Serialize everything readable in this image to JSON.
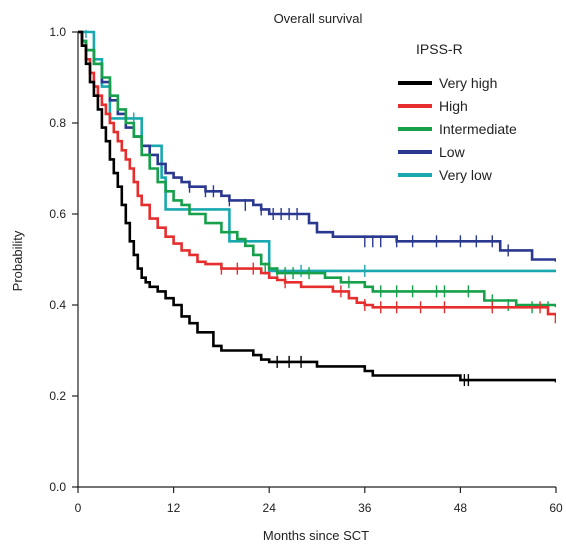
{
  "chart_data": {
    "type": "line",
    "step": true,
    "title": "Overall survival",
    "xlabel": "Months since SCT",
    "ylabel": "Probability",
    "xlim": [
      0,
      60
    ],
    "ylim": [
      0,
      1
    ],
    "xticks": [
      0,
      12,
      24,
      36,
      48,
      60
    ],
    "yticks": [
      0.0,
      0.2,
      0.4,
      0.6,
      0.8,
      1.0
    ],
    "ytick_labels": [
      "0.0",
      "0.2",
      "0.4",
      "0.6",
      "0.8",
      "1.0"
    ],
    "grid": false,
    "legend": {
      "title": "IPSS-R",
      "position": "top-right"
    },
    "series": [
      {
        "name": "Very high",
        "color": "#000000",
        "points": [
          [
            0,
            1.0
          ],
          [
            0.5,
            0.97
          ],
          [
            1,
            0.93
          ],
          [
            1.5,
            0.89
          ],
          [
            2,
            0.86
          ],
          [
            2.5,
            0.83
          ],
          [
            3,
            0.79
          ],
          [
            3.5,
            0.76
          ],
          [
            4,
            0.72
          ],
          [
            4.5,
            0.69
          ],
          [
            5,
            0.66
          ],
          [
            5.5,
            0.62
          ],
          [
            6,
            0.58
          ],
          [
            6.5,
            0.54
          ],
          [
            7,
            0.51
          ],
          [
            7.5,
            0.48
          ],
          [
            8,
            0.46
          ],
          [
            8.5,
            0.45
          ],
          [
            9,
            0.44
          ],
          [
            10,
            0.43
          ],
          [
            11,
            0.415
          ],
          [
            12,
            0.4
          ],
          [
            13,
            0.375
          ],
          [
            14,
            0.36
          ],
          [
            15,
            0.34
          ],
          [
            16,
            0.34
          ],
          [
            17,
            0.31
          ],
          [
            18,
            0.3
          ],
          [
            21,
            0.3
          ],
          [
            22,
            0.29
          ],
          [
            23,
            0.28
          ],
          [
            24,
            0.275
          ],
          [
            29,
            0.275
          ],
          [
            30,
            0.265
          ],
          [
            36,
            0.255
          ],
          [
            37,
            0.245
          ],
          [
            47,
            0.245
          ],
          [
            48,
            0.235
          ],
          [
            60,
            0.23
          ]
        ],
        "censored": [
          [
            25,
            0.275
          ],
          [
            26.5,
            0.275
          ],
          [
            28,
            0.275
          ],
          [
            48.5,
            0.235
          ],
          [
            49,
            0.235
          ]
        ]
      },
      {
        "name": "High",
        "color": "#e62e2e",
        "points": [
          [
            0,
            1.0
          ],
          [
            0.5,
            0.97
          ],
          [
            1,
            0.94
          ],
          [
            1.5,
            0.91
          ],
          [
            2,
            0.88
          ],
          [
            2.5,
            0.86
          ],
          [
            3,
            0.84
          ],
          [
            3.5,
            0.82
          ],
          [
            4,
            0.8
          ],
          [
            4.5,
            0.78
          ],
          [
            5,
            0.76
          ],
          [
            5.5,
            0.74
          ],
          [
            6,
            0.72
          ],
          [
            6.5,
            0.7
          ],
          [
            7,
            0.67
          ],
          [
            7.5,
            0.64
          ],
          [
            8,
            0.62
          ],
          [
            9,
            0.59
          ],
          [
            10,
            0.57
          ],
          [
            11,
            0.55
          ],
          [
            12,
            0.535
          ],
          [
            13,
            0.52
          ],
          [
            14,
            0.51
          ],
          [
            15,
            0.495
          ],
          [
            16,
            0.49
          ],
          [
            18,
            0.48
          ],
          [
            22,
            0.48
          ],
          [
            23,
            0.47
          ],
          [
            24,
            0.46
          ],
          [
            25,
            0.455
          ],
          [
            26,
            0.45
          ],
          [
            28,
            0.44
          ],
          [
            32,
            0.43
          ],
          [
            34,
            0.415
          ],
          [
            35,
            0.405
          ],
          [
            36,
            0.4
          ],
          [
            37,
            0.395
          ],
          [
            58,
            0.395
          ],
          [
            59,
            0.38
          ],
          [
            60,
            0.36
          ]
        ],
        "censored": [
          [
            18,
            0.48
          ],
          [
            20,
            0.48
          ],
          [
            22,
            0.48
          ],
          [
            26,
            0.45
          ],
          [
            33,
            0.43
          ],
          [
            36,
            0.4
          ],
          [
            38,
            0.395
          ],
          [
            40,
            0.395
          ],
          [
            43,
            0.395
          ],
          [
            46,
            0.395
          ],
          [
            52,
            0.395
          ],
          [
            58,
            0.395
          ]
        ]
      },
      {
        "name": "Intermediate",
        "color": "#16a04a",
        "points": [
          [
            0,
            1.0
          ],
          [
            0.5,
            0.98
          ],
          [
            1,
            0.96
          ],
          [
            2,
            0.93
          ],
          [
            3,
            0.9
          ],
          [
            4,
            0.86
          ],
          [
            5,
            0.83
          ],
          [
            6,
            0.8
          ],
          [
            7,
            0.77
          ],
          [
            8,
            0.73
          ],
          [
            9,
            0.7
          ],
          [
            10,
            0.67
          ],
          [
            11,
            0.65
          ],
          [
            12,
            0.63
          ],
          [
            13,
            0.62
          ],
          [
            14,
            0.6
          ],
          [
            16,
            0.58
          ],
          [
            18,
            0.56
          ],
          [
            20,
            0.545
          ],
          [
            21,
            0.53
          ],
          [
            22,
            0.51
          ],
          [
            23,
            0.49
          ],
          [
            24,
            0.48
          ],
          [
            25,
            0.47
          ],
          [
            30,
            0.47
          ],
          [
            31,
            0.46
          ],
          [
            33,
            0.45
          ],
          [
            36,
            0.44
          ],
          [
            37,
            0.43
          ],
          [
            50,
            0.43
          ],
          [
            51,
            0.41
          ],
          [
            55,
            0.4
          ],
          [
            60,
            0.395
          ]
        ],
        "censored": [
          [
            23.5,
            0.48
          ],
          [
            25,
            0.47
          ],
          [
            26,
            0.47
          ],
          [
            27,
            0.47
          ],
          [
            29,
            0.47
          ],
          [
            34,
            0.45
          ],
          [
            38,
            0.43
          ],
          [
            40,
            0.43
          ],
          [
            42,
            0.43
          ],
          [
            45,
            0.43
          ],
          [
            46,
            0.43
          ],
          [
            49,
            0.43
          ],
          [
            52,
            0.41
          ],
          [
            54,
            0.4
          ],
          [
            57,
            0.395
          ],
          [
            59,
            0.395
          ]
        ]
      },
      {
        "name": "Low",
        "color": "#2b3890",
        "points": [
          [
            0,
            1.0
          ],
          [
            0.5,
            0.98
          ],
          [
            1,
            0.96
          ],
          [
            2,
            0.93
          ],
          [
            3,
            0.89
          ],
          [
            4,
            0.85
          ],
          [
            5,
            0.82
          ],
          [
            6,
            0.79
          ],
          [
            7,
            0.77
          ],
          [
            8,
            0.75
          ],
          [
            9,
            0.73
          ],
          [
            10,
            0.71
          ],
          [
            11,
            0.69
          ],
          [
            12,
            0.68
          ],
          [
            13,
            0.67
          ],
          [
            14,
            0.66
          ],
          [
            16,
            0.65
          ],
          [
            18,
            0.64
          ],
          [
            19,
            0.63
          ],
          [
            22,
            0.62
          ],
          [
            23,
            0.61
          ],
          [
            24,
            0.6
          ],
          [
            28,
            0.6
          ],
          [
            29,
            0.58
          ],
          [
            30,
            0.56
          ],
          [
            32,
            0.55
          ],
          [
            38,
            0.55
          ],
          [
            40,
            0.54
          ],
          [
            52,
            0.54
          ],
          [
            53,
            0.52
          ],
          [
            56,
            0.52
          ],
          [
            57,
            0.5
          ],
          [
            60,
            0.495
          ]
        ],
        "censored": [
          [
            14,
            0.66
          ],
          [
            16,
            0.65
          ],
          [
            17,
            0.65
          ],
          [
            19,
            0.63
          ],
          [
            21,
            0.62
          ],
          [
            23,
            0.61
          ],
          [
            24.5,
            0.6
          ],
          [
            25.5,
            0.6
          ],
          [
            26.5,
            0.6
          ],
          [
            27.5,
            0.6
          ],
          [
            36,
            0.54
          ],
          [
            37,
            0.54
          ],
          [
            38,
            0.54
          ],
          [
            40,
            0.54
          ],
          [
            42,
            0.54
          ],
          [
            45,
            0.54
          ],
          [
            48,
            0.54
          ],
          [
            50,
            0.54
          ],
          [
            52,
            0.54
          ],
          [
            54,
            0.52
          ]
        ]
      },
      {
        "name": "Very low",
        "color": "#1aa8b0",
        "points": [
          [
            0,
            1.0
          ],
          [
            2,
            1.0
          ],
          [
            2,
            0.94
          ],
          [
            3,
            0.88
          ],
          [
            4,
            0.81
          ],
          [
            8,
            0.81
          ],
          [
            8,
            0.75
          ],
          [
            10.5,
            0.75
          ],
          [
            10.5,
            0.68
          ],
          [
            11,
            0.68
          ],
          [
            11,
            0.61
          ],
          [
            19,
            0.61
          ],
          [
            19,
            0.54
          ],
          [
            24,
            0.54
          ],
          [
            24,
            0.475
          ],
          [
            60,
            0.475
          ]
        ],
        "censored": [
          [
            1,
            1.0
          ],
          [
            7,
            0.81
          ],
          [
            24,
            0.475
          ],
          [
            28,
            0.475
          ],
          [
            36,
            0.475
          ]
        ]
      }
    ]
  }
}
